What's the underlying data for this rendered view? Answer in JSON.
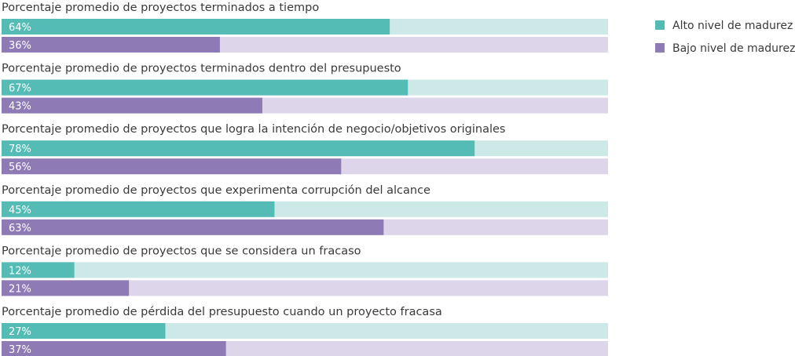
{
  "colors": {
    "high": "#55bcb5",
    "high_track": "#cce8e7",
    "low": "#8e7bb5",
    "low_track": "#ddd5ea"
  },
  "chart_data": {
    "type": "bar",
    "orientation": "horizontal",
    "title": "",
    "xlabel": "",
    "ylabel": "",
    "xlim": [
      0,
      100
    ],
    "value_suffix": "%",
    "legend_position": "top-right",
    "categories": [
      "Porcentaje promedio de proyectos terminados a tiempo",
      "Porcentaje promedio de proyectos terminados dentro del presupuesto",
      "Porcentaje promedio de proyectos que logra la intención de negocio/objetivos originales",
      "Porcentaje promedio de proyectos que experimenta corrupción del alcance",
      "Porcentaje promedio de proyectos que se considera un fracaso",
      "Porcentaje promedio de pérdida del presupuesto cuando un proyecto fracasa"
    ],
    "series": [
      {
        "name": "Alto nivel de madurez",
        "values": [
          64,
          67,
          78,
          45,
          12,
          27
        ]
      },
      {
        "name": "Bajo nivel de madurez",
        "values": [
          36,
          43,
          56,
          63,
          21,
          37
        ]
      }
    ]
  }
}
